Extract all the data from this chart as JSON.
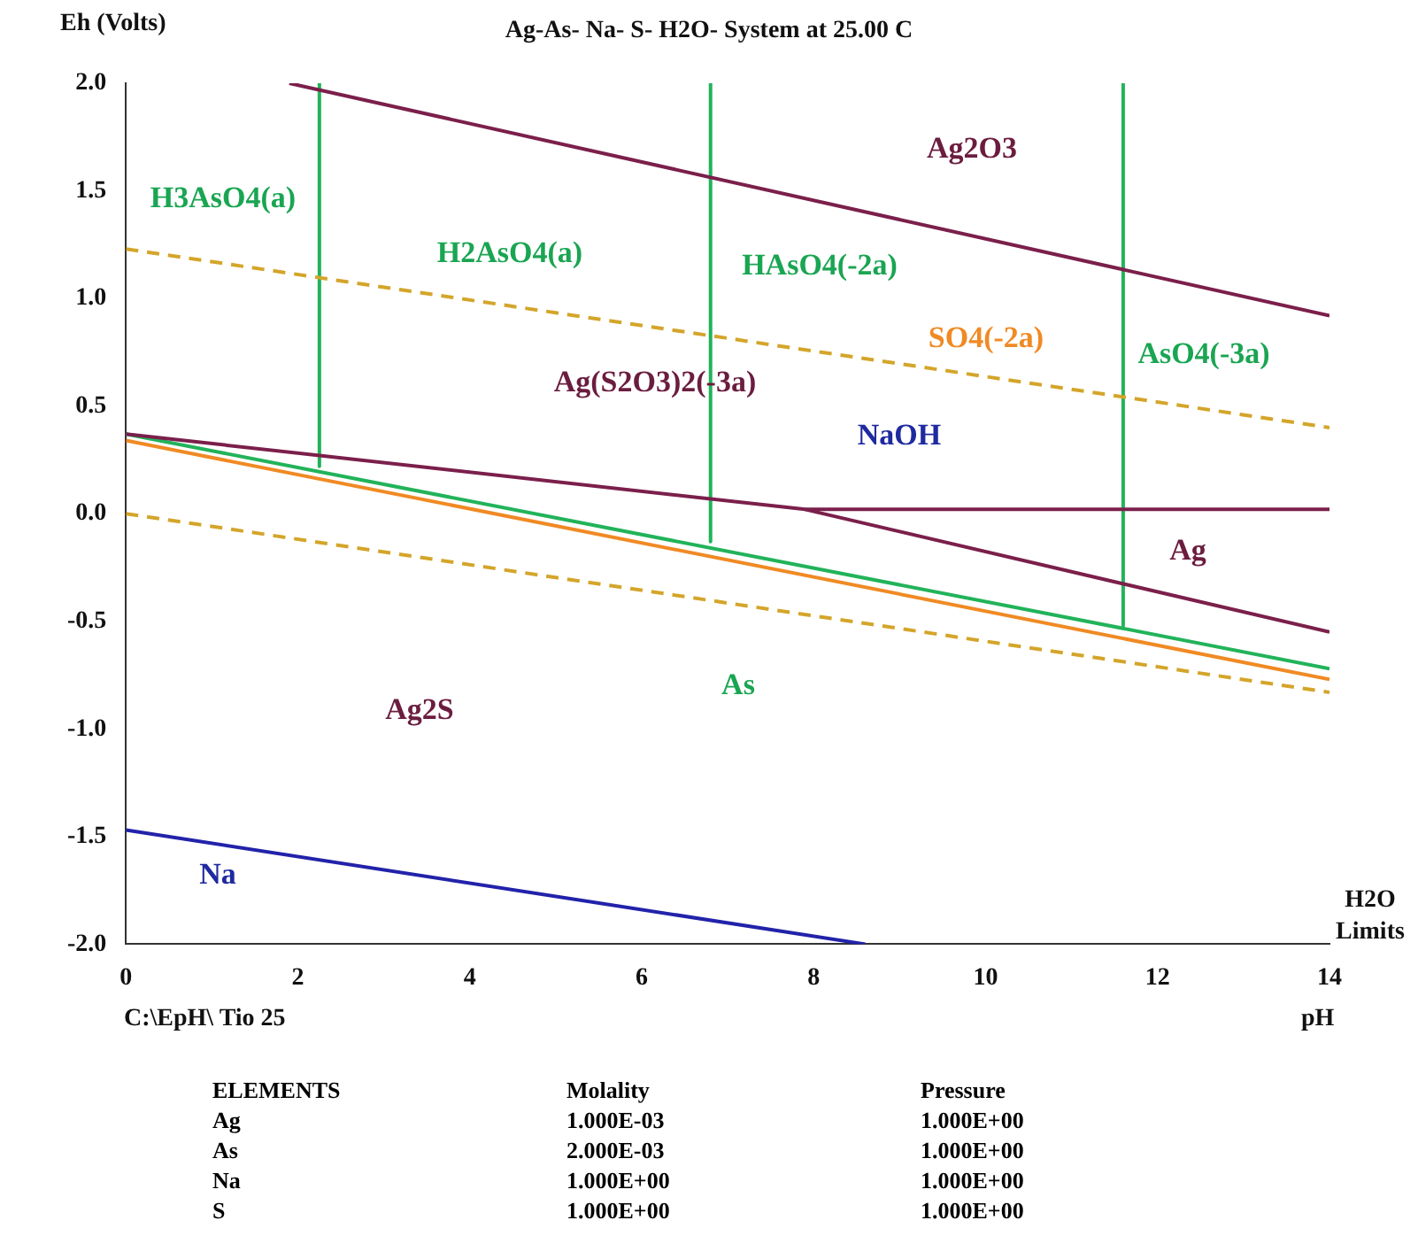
{
  "chart_data": {
    "type": "line",
    "title": "Ag-As- Na- S- H2O- System at 25.00 C",
    "xlabel": "pH",
    "ylabel": "Eh (Volts)",
    "xlim": [
      0,
      14
    ],
    "xticks": [
      0,
      2,
      4,
      6,
      8,
      10,
      12,
      14
    ],
    "ylim": [
      -2,
      2
    ],
    "yticks": [
      {
        "value": -2,
        "label": "-2.0"
      },
      {
        "value": -1.5,
        "label": "-1.5"
      },
      {
        "value": -1,
        "label": "-1.0"
      },
      {
        "value": -0.5,
        "label": "-0.5"
      },
      {
        "value": 0,
        "label": "0.0"
      },
      {
        "value": 0.5,
        "label": "0.5"
      },
      {
        "value": 1,
        "label": "1.0"
      },
      {
        "value": 1.5,
        "label": "1.5"
      },
      {
        "value": 2,
        "label": "2.0"
      }
    ],
    "grid": false,
    "legend": false,
    "marker": "none",
    "series": [
      {
        "color": "#d4a52a",
        "line_style": "dashed",
        "x": [
          0,
          14
        ],
        "values": [
          1.23,
          0.4
        ]
      },
      {
        "color": "#d4a52a",
        "line_style": "dashed",
        "x": [
          0,
          14
        ],
        "values": [
          0,
          -0.83
        ]
      },
      {
        "color": "#7b1f4b",
        "x": [
          1.9,
          14
        ],
        "values": [
          2.0,
          0.92
        ]
      },
      {
        "color": "#7b1f4b",
        "x": [
          0,
          7.9,
          14
        ],
        "values": [
          0.37,
          0.02,
          0.02
        ]
      },
      {
        "color": "#7b1f4b",
        "x": [
          7.9,
          14
        ],
        "values": [
          0.02,
          -0.55
        ]
      },
      {
        "color": "#22b35a",
        "x": [
          0,
          14
        ],
        "values": [
          0.37,
          -0.72
        ]
      },
      {
        "color": "#f08a24",
        "x": [
          0,
          14
        ],
        "values": [
          0.34,
          -0.77
        ]
      },
      {
        "color": "#22b35a",
        "x": [
          2.25,
          2.25
        ],
        "values": [
          2.0,
          0.22
        ]
      },
      {
        "color": "#22b35a",
        "x": [
          6.8,
          6.8
        ],
        "values": [
          2.0,
          -0.13
        ]
      },
      {
        "color": "#22b35a",
        "x": [
          11.6,
          11.6
        ],
        "values": [
          2.0,
          -0.52
        ]
      },
      {
        "color": "#2222aa",
        "x": [
          0,
          8.6
        ],
        "values": [
          -1.47,
          -2.0
        ]
      }
    ],
    "annotations": [
      "H3AsO4(a)",
      "H2AsO4(a)",
      "HAsO4(-2a)",
      "Ag2O3",
      "AsO4(-3a)",
      "SO4(-2a)",
      "Ag(S2O3)2(-3a)",
      "NaOH",
      "Ag",
      "As",
      "Ag2S",
      "Na",
      "H2O Limits",
      "C:\\EpH\\ Tio 25",
      "ELEMENTS",
      "Molality",
      "Pressure",
      "Ag",
      "1.000E-03",
      "1.000E+00",
      "As",
      "2.000E-03",
      "1.000E+00",
      "Na",
      "1.000E+00",
      "1.000E+00",
      "S",
      "1.000E+00",
      "1.000E+00"
    ]
  }
}
